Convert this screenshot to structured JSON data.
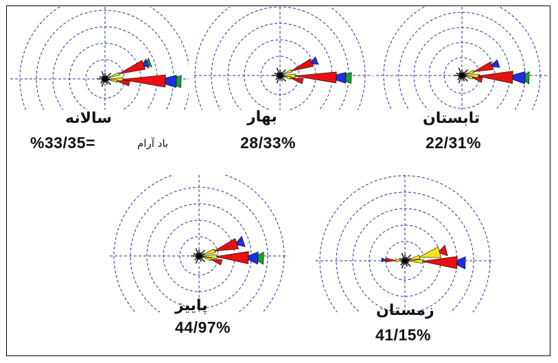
{
  "colors": {
    "grid": "#1f2fa6",
    "petal_red": "#e81010",
    "petal_yellow": "#f5e514",
    "petal_blue": "#1b2fe0",
    "petal_green": "#17a32a",
    "ink": "#111111",
    "frame": "#000000"
  },
  "roses": [
    {
      "id": "annual",
      "name": "سالانه",
      "value": "%33/35=",
      "calm_label": "باد آرام"
    },
    {
      "id": "spring",
      "name": "بهار",
      "value": "28/33%"
    },
    {
      "id": "summer",
      "name": "تابستان",
      "value": "22/31%"
    },
    {
      "id": "autumn",
      "name": "پاییز",
      "value": "44/97%"
    },
    {
      "id": "winter",
      "name": "زمستان",
      "value": "41/15%"
    }
  ]
}
